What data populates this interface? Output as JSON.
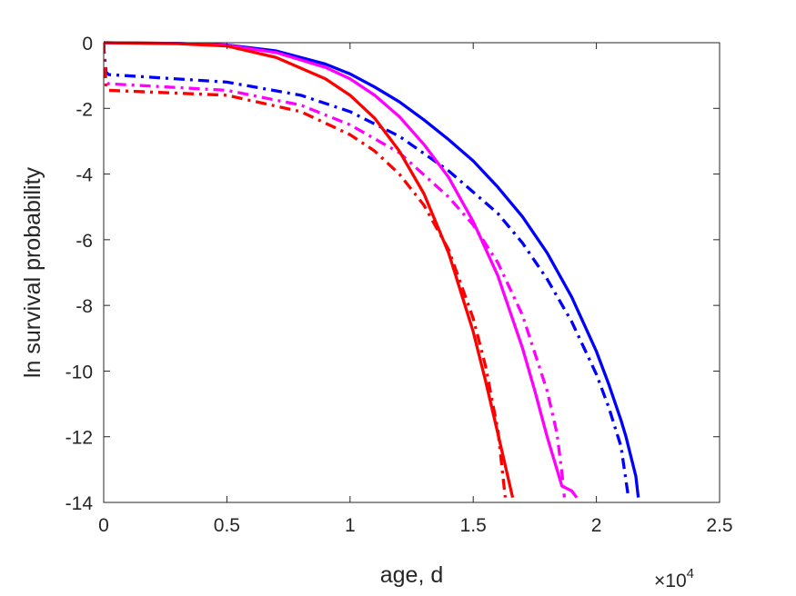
{
  "chart_data": {
    "type": "line",
    "xlabel": "age, d",
    "ylabel": "ln survival probability",
    "x_exponent_label": "×10",
    "x_exponent_power": "4",
    "x_scale": 10000,
    "xlim": [
      0,
      2.5
    ],
    "ylim": [
      -14,
      0
    ],
    "xticks": [
      0,
      0.5,
      1,
      1.5,
      2,
      2.5
    ],
    "xtick_labels": [
      "0",
      "0.5",
      "1",
      "1.5",
      "2",
      "2.5"
    ],
    "yticks": [
      0,
      -2,
      -4,
      -6,
      -8,
      -10,
      -12,
      -14
    ],
    "ytick_labels": [
      "0",
      "-2",
      "-4",
      "-6",
      "-8",
      "-10",
      "-12",
      "-14"
    ],
    "grid": false,
    "series": [
      {
        "color": "#0000ff",
        "style": "solid",
        "x": [
          0,
          0.3,
          0.5,
          0.7,
          0.9,
          1.0,
          1.1,
          1.2,
          1.3,
          1.4,
          1.5,
          1.6,
          1.7,
          1.8,
          1.9,
          2.0,
          2.05,
          2.1,
          2.12,
          2.14,
          2.16,
          2.17
        ],
        "y": [
          0,
          -0.02,
          -0.07,
          -0.25,
          -0.65,
          -0.95,
          -1.35,
          -1.8,
          -2.35,
          -2.95,
          -3.6,
          -4.4,
          -5.3,
          -6.4,
          -7.75,
          -9.4,
          -10.4,
          -11.5,
          -12.0,
          -12.6,
          -13.2,
          -13.85
        ]
      },
      {
        "color": "#0000ff",
        "style": "dashdot",
        "x": [
          0,
          0.003,
          0.01,
          0.02,
          0.5,
          0.8,
          1.0,
          1.2,
          1.4,
          1.6,
          1.7,
          1.8,
          1.9,
          2.0,
          2.05,
          2.1,
          2.13
        ],
        "y": [
          0,
          -0.4,
          -0.9,
          -0.97,
          -1.2,
          -1.6,
          -2.1,
          -2.85,
          -3.9,
          -5.2,
          -6.1,
          -7.2,
          -8.5,
          -10.1,
          -11.1,
          -12.3,
          -13.85
        ]
      },
      {
        "color": "#ff00ff",
        "style": "solid",
        "x": [
          0,
          0.3,
          0.5,
          0.7,
          0.9,
          1.0,
          1.1,
          1.2,
          1.3,
          1.4,
          1.5,
          1.6,
          1.7,
          1.75,
          1.8,
          1.84,
          1.86,
          1.9,
          1.92
        ],
        "y": [
          0,
          -0.02,
          -0.08,
          -0.3,
          -0.75,
          -1.1,
          -1.6,
          -2.25,
          -3.1,
          -4.1,
          -5.45,
          -7.1,
          -9.3,
          -10.6,
          -12.0,
          -13.0,
          -13.5,
          -13.65,
          -13.85
        ]
      },
      {
        "color": "#ff00ff",
        "style": "dashdot",
        "x": [
          0,
          0.003,
          0.01,
          0.02,
          0.5,
          0.8,
          1.0,
          1.2,
          1.4,
          1.5,
          1.6,
          1.7,
          1.8,
          1.84,
          1.86,
          1.87
        ],
        "y": [
          0,
          -0.6,
          -1.2,
          -1.25,
          -1.45,
          -1.9,
          -2.5,
          -3.35,
          -4.7,
          -5.55,
          -6.7,
          -8.3,
          -10.6,
          -11.9,
          -13.1,
          -13.85
        ]
      },
      {
        "color": "#ff0000",
        "style": "solid",
        "x": [
          0,
          0.3,
          0.5,
          0.7,
          0.9,
          1.0,
          1.1,
          1.2,
          1.3,
          1.4,
          1.5,
          1.55,
          1.6,
          1.64,
          1.66
        ],
        "y": [
          0,
          -0.03,
          -0.1,
          -0.45,
          -1.1,
          -1.6,
          -2.3,
          -3.3,
          -4.6,
          -6.4,
          -8.8,
          -10.3,
          -11.9,
          -13.2,
          -13.85
        ]
      },
      {
        "color": "#ff0000",
        "style": "dashdot",
        "x": [
          0,
          0.003,
          0.01,
          0.02,
          0.5,
          0.8,
          1.0,
          1.1,
          1.2,
          1.3,
          1.4,
          1.5,
          1.55,
          1.6,
          1.63
        ],
        "y": [
          0,
          -0.7,
          -1.35,
          -1.45,
          -1.6,
          -2.1,
          -2.8,
          -3.3,
          -4.0,
          -4.95,
          -6.3,
          -8.4,
          -9.85,
          -11.8,
          -13.85
        ]
      }
    ]
  }
}
